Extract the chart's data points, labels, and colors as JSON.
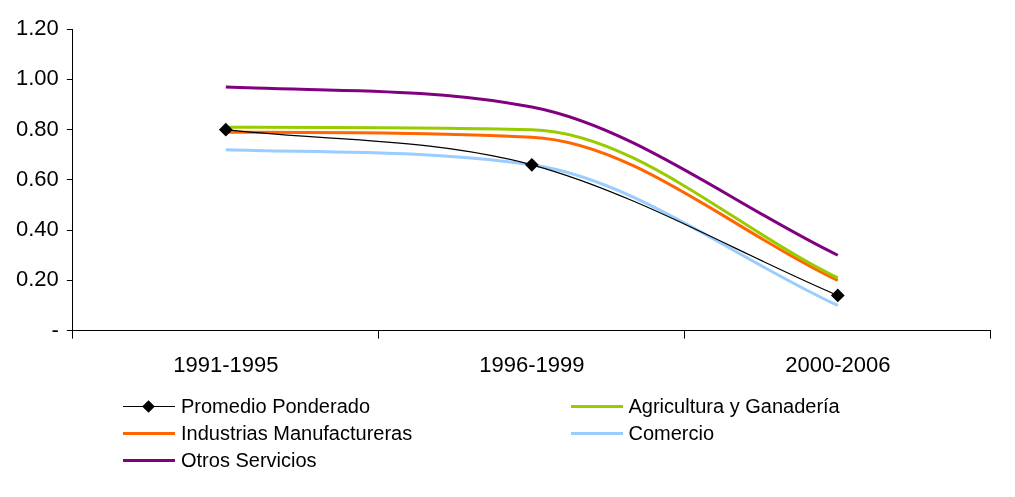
{
  "chart_data": {
    "type": "line",
    "categories": [
      "1991-1995",
      "1996-1999",
      "2000-2006"
    ],
    "series": [
      {
        "name": "Promedio Ponderado",
        "color": "#000000",
        "values": [
          0.8,
          0.66,
          0.14
        ],
        "marker": "diamond"
      },
      {
        "name": "Agricultura y Ganadería",
        "color": "#99cc00",
        "values": [
          0.81,
          0.8,
          0.21
        ]
      },
      {
        "name": "Industrias Manufactureras",
        "color": "#ff6600",
        "values": [
          0.79,
          0.77,
          0.2
        ]
      },
      {
        "name": "Comercio",
        "color": "#99ccff",
        "values": [
          0.72,
          0.66,
          0.1
        ]
      },
      {
        "name": "Otros Servicios",
        "color": "#800080",
        "values": [
          0.97,
          0.89,
          0.3
        ]
      }
    ],
    "ylim": [
      0,
      1.2
    ],
    "yticks": [
      {
        "value": 0,
        "label": "-"
      },
      {
        "value": 0.2,
        "label": "0.20"
      },
      {
        "value": 0.4,
        "label": "0.40"
      },
      {
        "value": 0.6,
        "label": "0.60"
      },
      {
        "value": 0.8,
        "label": "0.80"
      },
      {
        "value": 1.0,
        "label": "1.00"
      },
      {
        "value": 1.2,
        "label": "1.20"
      }
    ],
    "grid": false,
    "legend": "bottom",
    "marker": "none"
  }
}
